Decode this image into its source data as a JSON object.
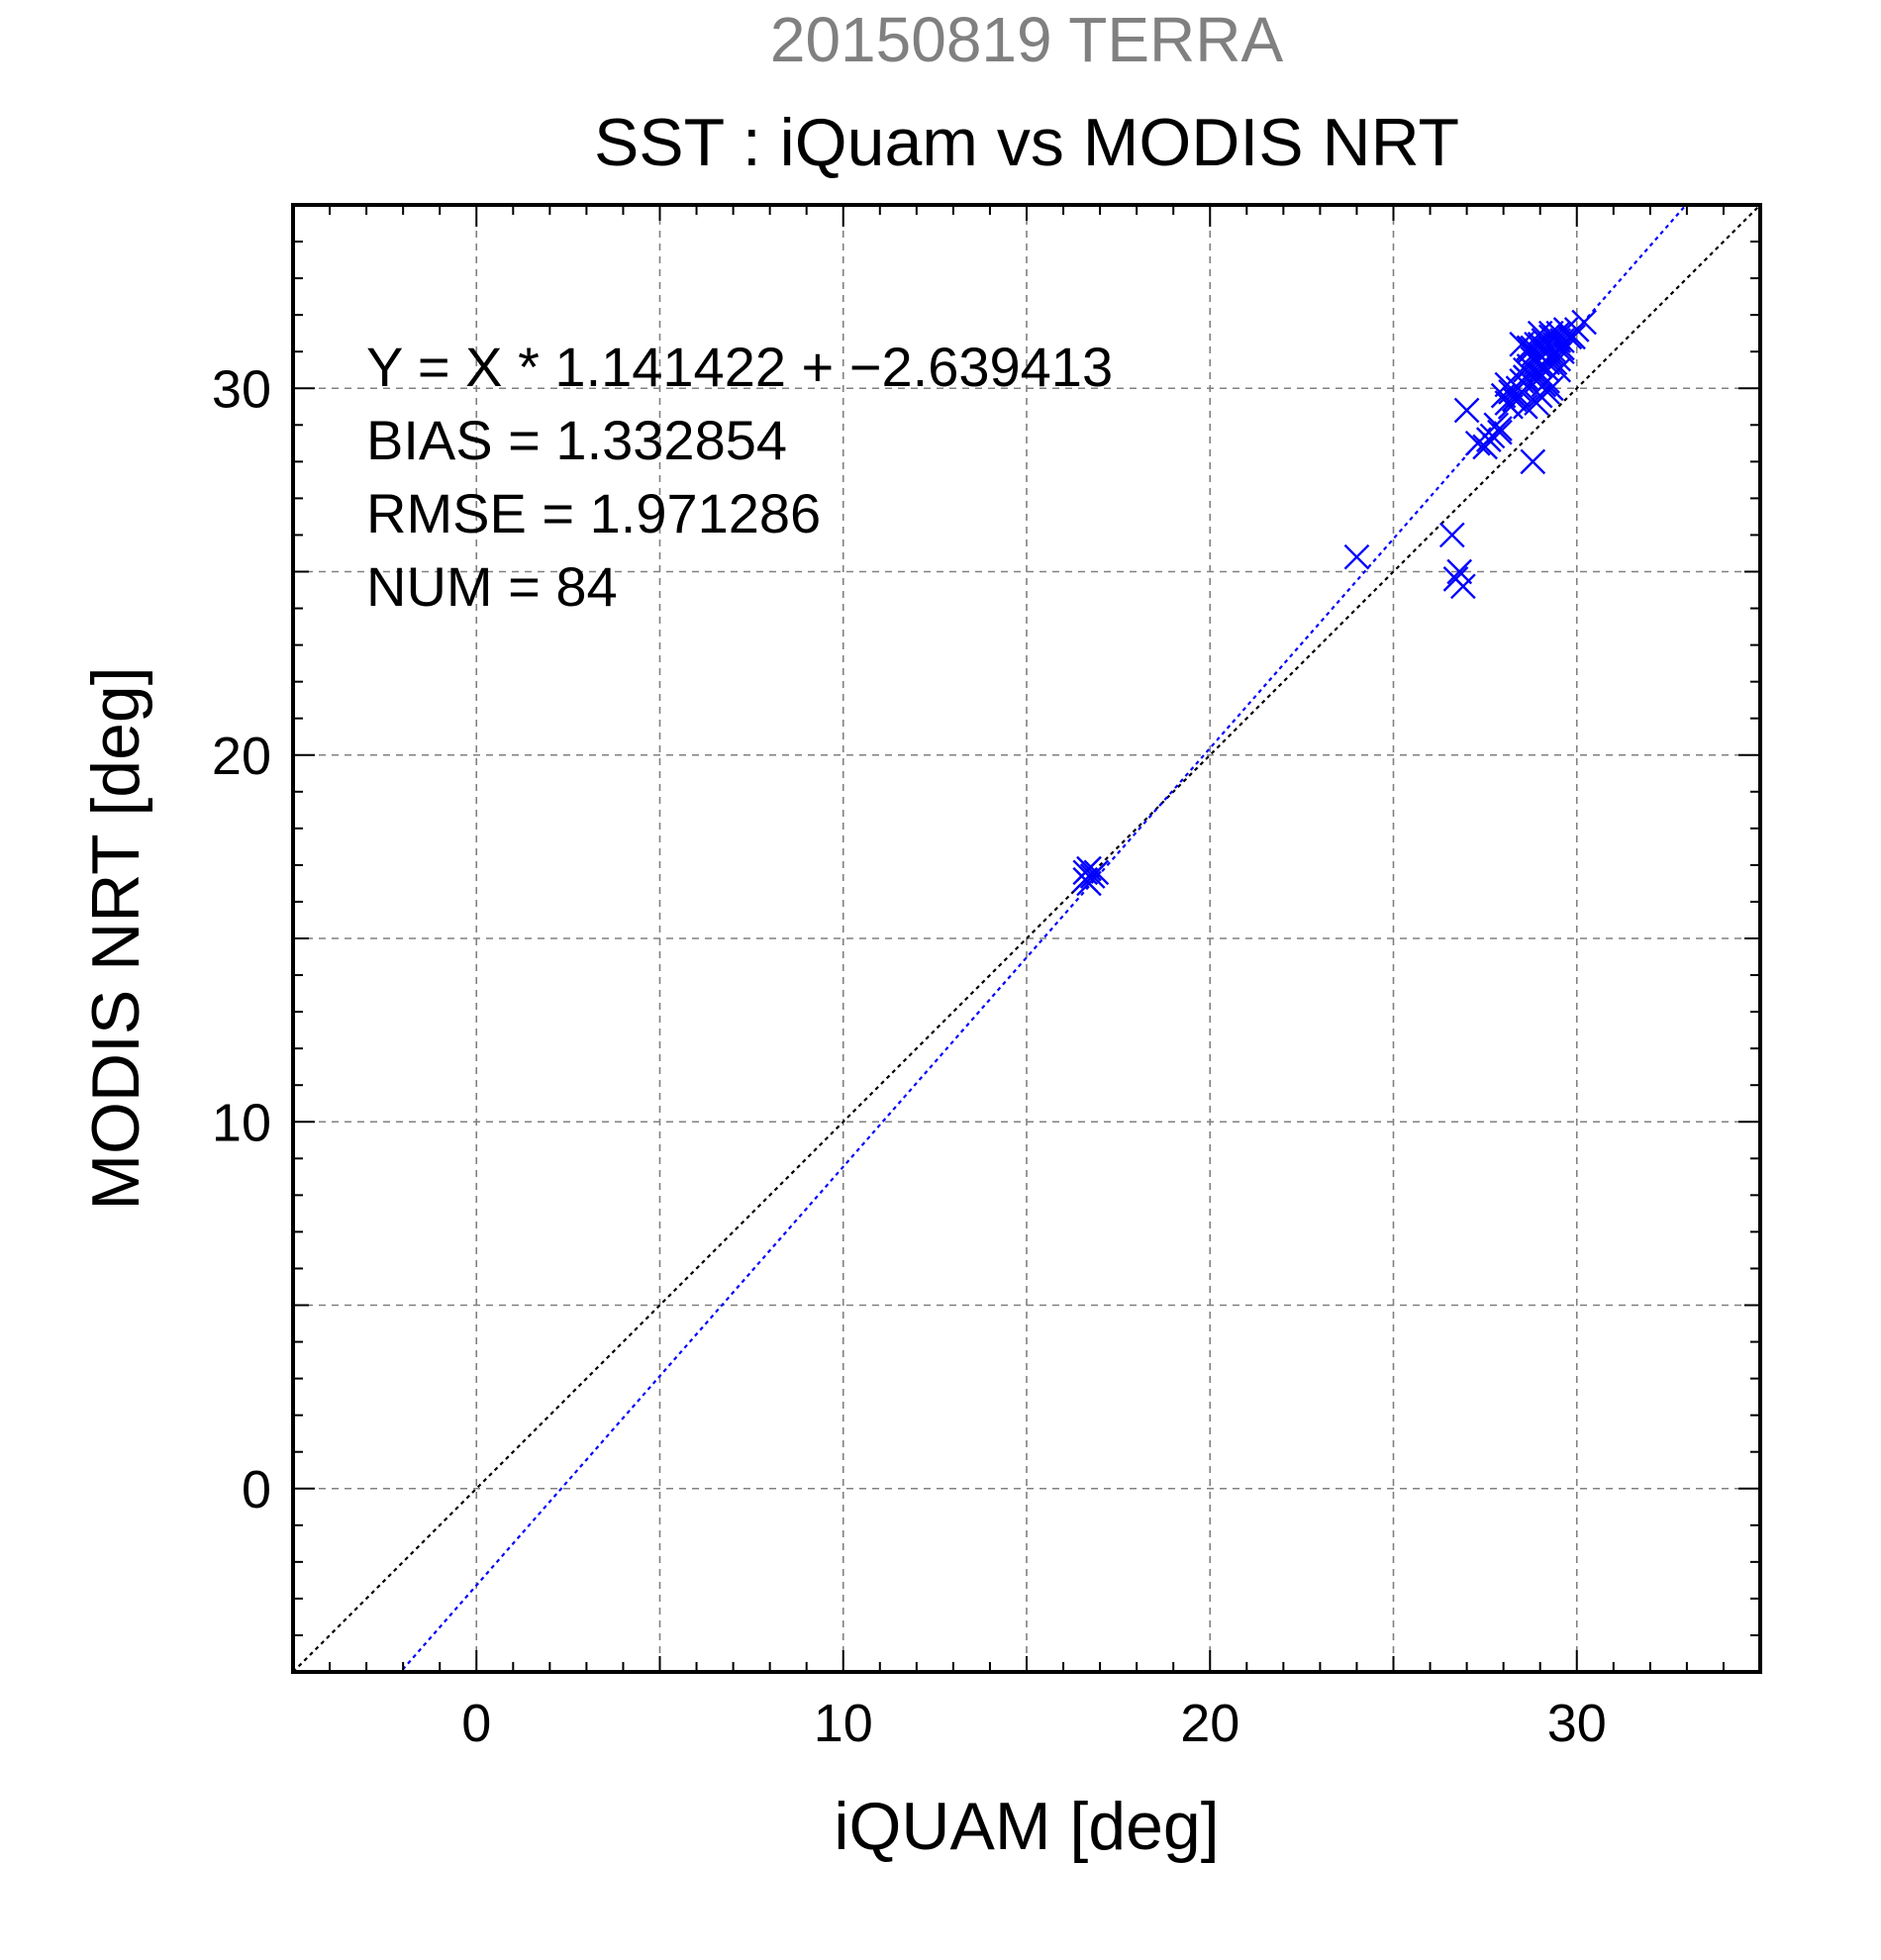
{
  "chart_data": {
    "type": "scatter",
    "supertitle": "20150819 TERRA",
    "title": "SST : iQuam vs MODIS NRT",
    "xlabel": "iQUAM [deg]",
    "ylabel": "MODIS NRT [deg]",
    "xlim": [
      -5,
      35
    ],
    "ylim": [
      -5,
      35
    ],
    "major_ticks": [
      0,
      10,
      20,
      30
    ],
    "minor_tick_step": 1,
    "grid": true,
    "grid_step": 5,
    "annotations": [
      "Y = X * 1.141422 + −2.639413",
      "BIAS = 1.332854",
      "RMSE = 1.971286",
      "NUM = 84"
    ],
    "regression": {
      "slope": 1.141422,
      "intercept": -2.639413
    },
    "colors": {
      "points": "#0000ff",
      "fit_line": "#0000ff",
      "identity_line": "#000000",
      "grid": "#808080",
      "supertitle": "#808080"
    },
    "series": [
      {
        "marker": "x",
        "x": [
          16.6,
          16.7,
          16.8,
          16.6,
          16.9,
          16.7,
          24.0,
          26.6,
          26.8,
          26.7,
          26.9,
          27.0,
          27.3,
          27.5,
          27.6,
          27.7,
          27.8,
          27.9,
          28.0,
          27.9,
          28.1,
          28.2,
          28.1,
          28.3,
          28.4,
          28.2,
          28.5,
          28.6,
          28.4,
          28.7,
          28.8,
          28.6,
          28.9,
          28.5,
          28.7,
          28.9,
          29.0,
          28.8,
          29.1,
          29.2,
          29.0,
          28.9,
          29.3,
          29.1,
          29.2,
          29.4,
          29.3,
          29.5,
          29.6,
          29.4,
          29.7,
          29.5,
          29.8,
          29.6,
          30.0,
          29.9,
          30.2,
          28.6,
          28.7,
          28.8,
          28.9,
          29.0,
          29.1,
          29.2,
          29.3,
          29.4,
          29.0,
          29.1,
          28.8,
          29.2,
          29.5,
          29.3,
          28.6,
          29.0,
          29.2,
          29.4,
          29.6,
          28.9,
          29.1,
          29.3,
          28.7,
          29.5,
          29.0,
          29.2
        ],
        "y": [
          16.8,
          16.9,
          16.7,
          16.6,
          16.8,
          16.5,
          25.4,
          26.0,
          25.0,
          24.8,
          24.6,
          29.4,
          28.5,
          28.4,
          28.6,
          28.7,
          29.0,
          28.9,
          29.8,
          28.8,
          30.1,
          29.5,
          29.6,
          29.7,
          30.0,
          29.9,
          30.2,
          30.5,
          29.8,
          31.0,
          30.8,
          30.3,
          30.7,
          31.2,
          31.1,
          30.4,
          30.9,
          28.0,
          31.3,
          31.0,
          30.6,
          29.6,
          31.4,
          31.1,
          30.2,
          31.2,
          30.8,
          31.5,
          31.3,
          31.0,
          31.6,
          30.5,
          31.4,
          31.1,
          31.6,
          31.4,
          31.8,
          29.5,
          30.6,
          30.9,
          31.2,
          31.5,
          30.1,
          30.5,
          30.0,
          30.7,
          29.8,
          31.3,
          31.1,
          31.0,
          30.8,
          31.5,
          30.3,
          31.2,
          29.9,
          31.4,
          31.0,
          30.2,
          30.6,
          30.9,
          31.1,
          31.3,
          30.4,
          30.7
        ]
      }
    ]
  }
}
